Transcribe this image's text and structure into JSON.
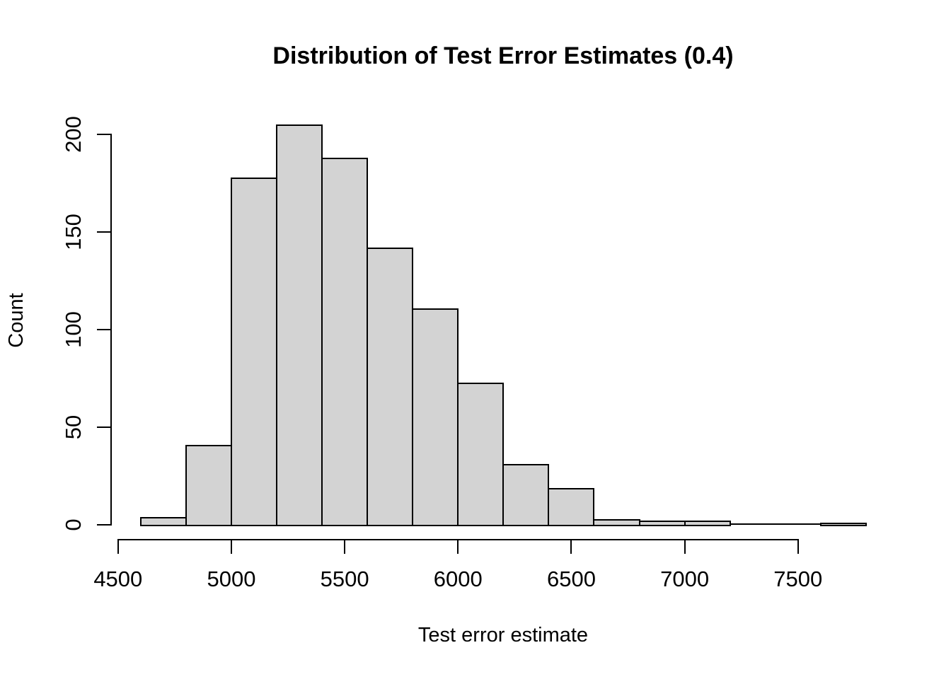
{
  "figure": {
    "background": "#ffffff",
    "text_color": "#000000"
  },
  "chart_data": {
    "type": "bar",
    "subtype": "histogram",
    "title": "Distribution of Test Error Estimates (0.4)",
    "xlabel": "Test error estimate",
    "ylabel": "Count",
    "bin_edges": [
      4600,
      4800,
      5000,
      5200,
      5400,
      5600,
      5800,
      6000,
      6200,
      6400,
      6600,
      6800,
      7000,
      7200,
      7400,
      7600,
      7800
    ],
    "counts": [
      4,
      41,
      178,
      205,
      188,
      142,
      111,
      73,
      31,
      19,
      3,
      2,
      2,
      0,
      0,
      1
    ],
    "total_observations": 1000,
    "x_ticks": [
      4500,
      5000,
      5500,
      6000,
      6500,
      7000,
      7500
    ],
    "y_ticks": [
      0,
      50,
      100,
      150,
      200
    ],
    "x_axis_range": [
      4500,
      7500
    ],
    "y_axis_range": [
      0,
      200
    ],
    "grid": false,
    "legend": false,
    "bar_fill": "#d3d3d3",
    "bar_border": "#000000",
    "axis_color": "#000000"
  }
}
